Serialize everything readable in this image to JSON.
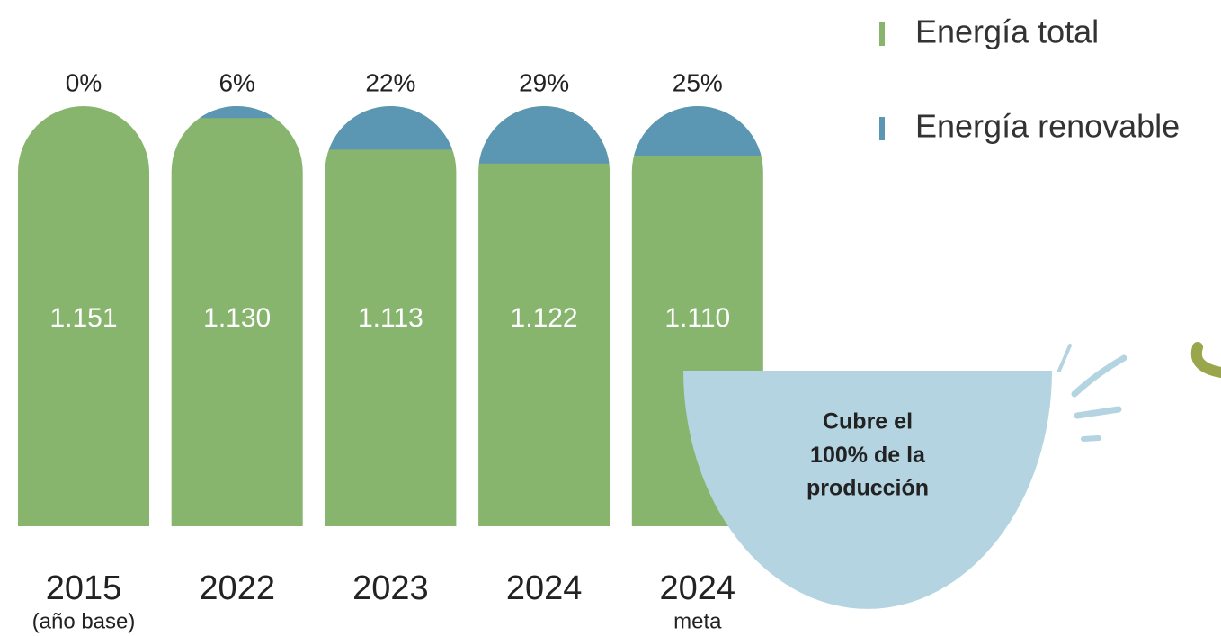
{
  "chart_data": {
    "type": "bar",
    "categories": [
      "2015",
      "2022",
      "2023",
      "2024",
      "2024"
    ],
    "sublabels": [
      "(año base)",
      null,
      null,
      null,
      "meta"
    ],
    "series": [
      {
        "name": "Energía total",
        "color": "#88b56e",
        "values": [
          1151,
          1130,
          1113,
          1122,
          1110
        ],
        "value_labels": [
          "1.151",
          "1.130",
          "1.113",
          "1.122",
          "1.110"
        ]
      },
      {
        "name": "Energía renovable",
        "color": "#5b97b2",
        "values": [
          0,
          6,
          22,
          29,
          25
        ],
        "value_labels": [
          "0%",
          "6%",
          "22%",
          "29%",
          "25%"
        ]
      }
    ],
    "callout": [
      "Cubre el",
      "100%",
      "de la",
      "producción"
    ]
  }
}
